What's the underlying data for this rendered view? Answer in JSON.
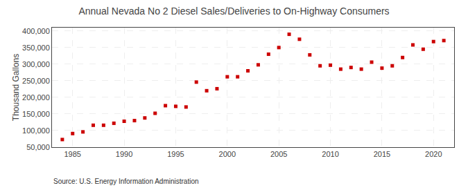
{
  "chart_data": {
    "type": "scatter",
    "title": "Annual Nevada No 2 Diesel Sales/Deliveries to On-Highway Consumers",
    "ylabel": "Thousand Gallons",
    "annotation": "Source: U.S. Energy Information Administration",
    "x": [
      1984,
      1985,
      1986,
      1987,
      1988,
      1989,
      1990,
      1991,
      1992,
      1993,
      1994,
      1995,
      1996,
      1997,
      1998,
      1999,
      2000,
      2001,
      2002,
      2003,
      2004,
      2005,
      2006,
      2007,
      2008,
      2009,
      2010,
      2011,
      2012,
      2013,
      2014,
      2015,
      2016,
      2017,
      2018,
      2019,
      2020,
      2021
    ],
    "values": [
      73000,
      91000,
      96000,
      116000,
      116000,
      122000,
      128000,
      130000,
      138000,
      152000,
      175000,
      173000,
      171000,
      246000,
      220000,
      226000,
      262000,
      262000,
      280000,
      298000,
      330000,
      350000,
      390000,
      375000,
      328000,
      295000,
      297000,
      285000,
      290000,
      285000,
      306000,
      288000,
      295000,
      320000,
      358000,
      345000,
      368000,
      371000
    ],
    "color": "#cc0000",
    "marker": "square",
    "xlim": [
      1983,
      2022
    ],
    "ylim": [
      50000,
      410000
    ],
    "xticks": [
      1985,
      1990,
      1995,
      2000,
      2005,
      2010,
      2015,
      2020
    ],
    "yticks": [
      {
        "value": 50000,
        "label": "50,000"
      },
      {
        "value": 100000,
        "label": "100,000"
      },
      {
        "value": 150000,
        "label": "150,000"
      },
      {
        "value": 200000,
        "label": "200,000"
      },
      {
        "value": 250000,
        "label": "250,000"
      },
      {
        "value": 300000,
        "label": "300,000"
      },
      {
        "value": 350000,
        "label": "350,000"
      },
      {
        "value": 400000,
        "label": "400,000"
      }
    ],
    "grid": true
  }
}
